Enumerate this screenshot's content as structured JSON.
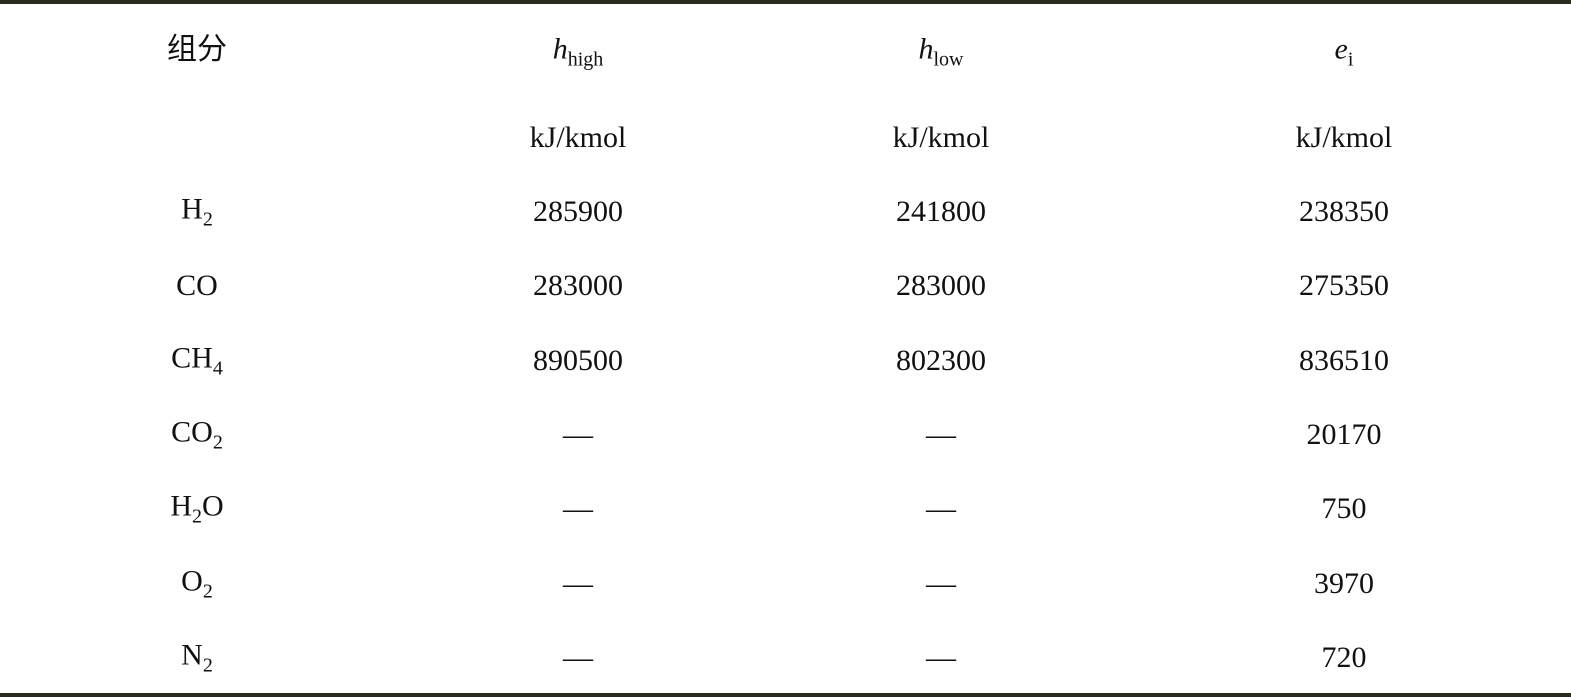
{
  "table": {
    "header": {
      "component": "组分",
      "columns": [
        {
          "symbol": "h",
          "sub": "high",
          "unit": "kJ/kmol"
        },
        {
          "symbol": "h",
          "sub": "low",
          "unit": "kJ/kmol"
        },
        {
          "symbol": "e",
          "sub": "i",
          "unit": "kJ/kmol"
        }
      ]
    },
    "rows": [
      {
        "formula": [
          {
            "t": "H"
          },
          {
            "s": "2"
          }
        ],
        "values": [
          "285900",
          "241800",
          "238350"
        ]
      },
      {
        "formula": [
          {
            "t": "CO"
          }
        ],
        "values": [
          "283000",
          "283000",
          "275350"
        ]
      },
      {
        "formula": [
          {
            "t": "CH"
          },
          {
            "s": "4"
          }
        ],
        "values": [
          "890500",
          "802300",
          "836510"
        ]
      },
      {
        "formula": [
          {
            "t": "CO"
          },
          {
            "s": "2"
          }
        ],
        "values": [
          "—",
          "—",
          "20170"
        ]
      },
      {
        "formula": [
          {
            "t": "H"
          },
          {
            "s": "2"
          },
          {
            "t": "O"
          }
        ],
        "values": [
          "—",
          "—",
          "750"
        ]
      },
      {
        "formula": [
          {
            "t": "O"
          },
          {
            "s": "2"
          }
        ],
        "values": [
          "—",
          "—",
          "3970"
        ]
      },
      {
        "formula": [
          {
            "t": "N"
          },
          {
            "s": "2"
          }
        ],
        "values": [
          "—",
          "—",
          "720"
        ]
      }
    ]
  }
}
